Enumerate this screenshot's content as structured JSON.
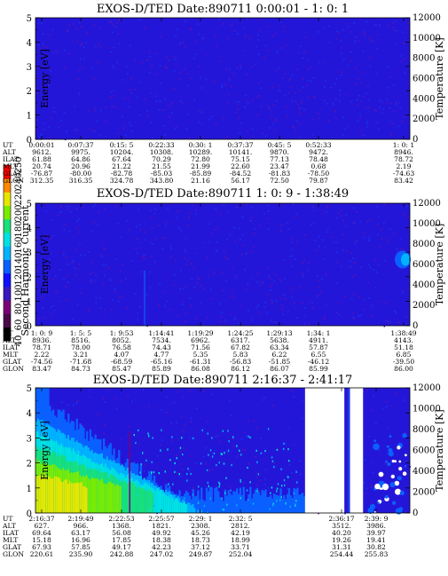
{
  "palette": [
    "#000000",
    "#4a0a4a",
    "#7a007a",
    "#3a18c0",
    "#1010ff",
    "#0a60ff",
    "#00b4ff",
    "#00e2e2",
    "#18e07a",
    "#7aec00",
    "#e6e600",
    "#ff8800",
    "#ff0000"
  ],
  "colorbar": {
    "label": "Second Harmonic Current",
    "ticks": [
      "40",
      "60",
      "80",
      "100",
      "120",
      "140",
      "160",
      "180",
      "200",
      "220",
      "240",
      "250"
    ]
  },
  "chart_data": [
    {
      "type": "heatmap",
      "title": "EXOS-D/TED   Date:890711  0:00:01 - 1: 0: 1",
      "ylabel": "Energy [eV]",
      "y2label": "Temperature [K]",
      "yticks": [
        "0",
        "1",
        "2",
        "3",
        "4",
        "5"
      ],
      "y2ticks": [
        "0",
        "2000",
        "4000",
        "6000",
        "8000",
        "10000",
        "12000"
      ],
      "ylim": [
        0,
        5
      ],
      "y2lim": [
        0,
        12000
      ],
      "rows": [
        {
          "label": "UT",
          "values": [
            "0:00:01",
            "0:07:37",
            "0:15: 5",
            "0:22:33",
            "0:30: 1",
            "0:37:37",
            "0:45: 5",
            "0:52:33",
            "1: 0: 1"
          ]
        },
        {
          "label": "ALT",
          "values": [
            "9612.",
            "9975.",
            "10204.",
            "10308.",
            "10289.",
            "10141.",
            "9870.",
            "9472.",
            "8946."
          ]
        },
        {
          "label": "ILAT",
          "values": [
            "61.88",
            "64.86",
            "67.64",
            "70.29",
            "72.80",
            "75.15",
            "77.13",
            "78.48",
            "78.72"
          ]
        },
        {
          "label": "MLT",
          "values": [
            "20.74",
            "20.96",
            "21.22",
            "21.55",
            "21.99",
            "22.60",
            "23.47",
            "0.68",
            "2.19"
          ]
        },
        {
          "label": "GLAT",
          "values": [
            "-76.87",
            "-80.00",
            "-82.78",
            "-85.03",
            "-85.89",
            "-84.52",
            "-81.83",
            "-78.50",
            "-74.63"
          ]
        },
        {
          "label": "GLON",
          "values": [
            "312.35",
            "316.35",
            "324.78",
            "343.80",
            "21.16",
            "56.17",
            "72.50",
            "79.87",
            "83.42"
          ]
        }
      ]
    },
    {
      "type": "heatmap",
      "title": "EXOS-D/TED   Date:890711  1: 0: 9 - 1:38:49",
      "ylabel": "Energy [eV]",
      "y2label": "Temperature [K]",
      "yticks": [
        "0",
        "1",
        "2",
        "3",
        "4",
        "5"
      ],
      "y2ticks": [
        "0",
        "2000",
        "4000",
        "6000",
        "8000",
        "10000",
        "12000"
      ],
      "ylim": [
        0,
        5
      ],
      "y2lim": [
        0,
        12000
      ],
      "rows": [
        {
          "label": "UT",
          "values": [
            "1: 0: 9",
            "1: 5: 5",
            "1: 9:53",
            "1:14:41",
            "1:19:29",
            "1:24:25",
            "1:29:13",
            "1:34: 1",
            "1:38:49"
          ]
        },
        {
          "label": "ALT",
          "values": [
            "8936.",
            "8516.",
            "8052.",
            "7534.",
            "6962.",
            "6317.",
            "5638.",
            "4911.",
            "4143."
          ]
        },
        {
          "label": "ILAT",
          "values": [
            "78.71",
            "78.00",
            "76.58",
            "74.43",
            "71.56",
            "67.82",
            "63.34",
            "57.87",
            "51.18"
          ]
        },
        {
          "label": "MLT",
          "values": [
            "2.22",
            "3.21",
            "4.07",
            "4.77",
            "5.35",
            "5.83",
            "6.22",
            "6.55",
            "6.85"
          ]
        },
        {
          "label": "GLAT",
          "values": [
            "-74.56",
            "-71.68",
            "-68.59",
            "-65.16",
            "-61.31",
            "-56.83",
            "-51.85",
            "-46.12",
            "-39.50"
          ]
        },
        {
          "label": "GLON",
          "values": [
            "83.47",
            "84.73",
            "85.47",
            "85.89",
            "86.08",
            "86.12",
            "86.07",
            "85.99",
            "86.00"
          ]
        }
      ]
    },
    {
      "type": "heatmap",
      "title": "EXOS-D/TED   Date:890711  2:16:37 - 2:41:17",
      "ylabel": "Energy [eV]",
      "y2label": "Temperature [K]",
      "yticks": [
        "0",
        "1",
        "2",
        "3",
        "4",
        "5"
      ],
      "y2ticks": [
        "0",
        "2000",
        "4000",
        "6000",
        "8000",
        "10000",
        "12000"
      ],
      "ylim": [
        0,
        5
      ],
      "y2lim": [
        0,
        12000
      ],
      "rows": [
        {
          "label": "UT",
          "values": [
            "2:16:37",
            "2:19:49",
            "2:22:53",
            "2:25:57",
            "2:29: 1",
            "2:32: 5",
            "2:36:17",
            "2:39: 9"
          ]
        },
        {
          "label": "ALT",
          "values": [
            "627.",
            "966.",
            "1368.",
            "1821.",
            "2308.",
            "2812.",
            "3512.",
            "3986."
          ]
        },
        {
          "label": "ILAT",
          "values": [
            "69.64",
            "63.17",
            "56.08",
            "49.92",
            "45.26",
            "42.19",
            "40.20",
            "39.97"
          ]
        },
        {
          "label": "MLT",
          "values": [
            "15.18",
            "16.96",
            "17.85",
            "18.38",
            "18.73",
            "18.99",
            "19.26",
            "19.41"
          ]
        },
        {
          "label": "GLAT",
          "values": [
            "67.93",
            "57.85",
            "49.17",
            "42.23",
            "37.12",
            "33.71",
            "31.31",
            "30.82"
          ]
        },
        {
          "label": "GLON",
          "values": [
            "220.61",
            "235.90",
            "242.88",
            "247.02",
            "249.87",
            "252.04",
            "254.44",
            "255.83"
          ]
        }
      ]
    }
  ]
}
